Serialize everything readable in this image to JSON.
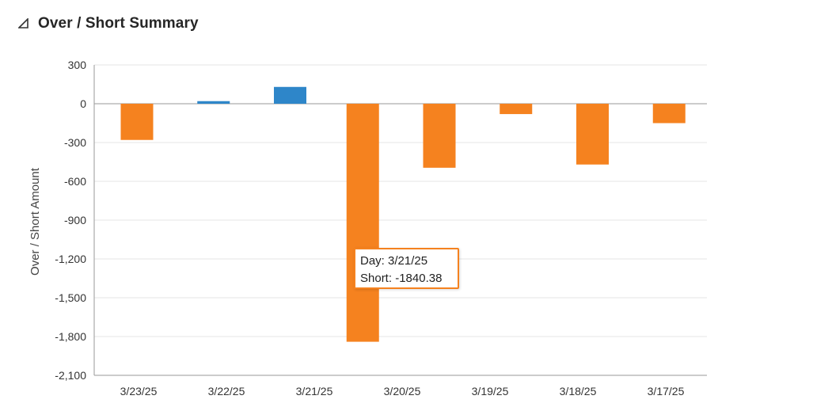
{
  "header": {
    "title": "Over / Short Summary",
    "toggle_icon": "collapse-triangle-icon"
  },
  "tooltip": {
    "day_label": "Day:",
    "day_value": "3/21/25",
    "short_label": "Short:",
    "short_value": "-1840.38"
  },
  "chart_data": {
    "type": "bar",
    "ylabel": "Over / Short Amount",
    "xlabel": "",
    "categories": [
      "3/23/25",
      "3/22/25",
      "3/21/25",
      "3/21/25",
      "3/20/25",
      "3/19/25",
      "3/18/25",
      "3/17/25"
    ],
    "x_tick_labels": [
      "3/23/25",
      "3/22/25",
      "3/21/25",
      "3/20/25",
      "3/19/25",
      "3/18/25",
      "3/17/25"
    ],
    "series": [
      {
        "values": [
          -280,
          20,
          null,
          null,
          -495,
          -80,
          -470,
          -150
        ],
        "kind": "per-day"
      },
      {
        "values": [
          null,
          null,
          130,
          -1840.38,
          null,
          null,
          null,
          null
        ],
        "kind": "per-day-split"
      }
    ],
    "bars": [
      {
        "day": "3/23/25",
        "value": -280,
        "color": "#f5821f"
      },
      {
        "day": "3/22/25",
        "value": 20,
        "color": "#2e86c9"
      },
      {
        "day": "3/21/25",
        "value": 130,
        "color": "#2e86c9",
        "slot": "left"
      },
      {
        "day": "3/21/25",
        "value": -1840.38,
        "color": "#f5821f",
        "slot": "right"
      },
      {
        "day": "3/20/25",
        "value": -495,
        "color": "#f5821f"
      },
      {
        "day": "3/19/25",
        "value": -80,
        "color": "#f5821f"
      },
      {
        "day": "3/18/25",
        "value": -470,
        "color": "#f5821f"
      },
      {
        "day": "3/17/25",
        "value": -150,
        "color": "#f5821f"
      }
    ],
    "y_ticks": [
      300,
      0,
      -300,
      -600,
      -900,
      -1200,
      -1500,
      -1800,
      -2100
    ],
    "y_tick_labels": [
      "300",
      "0",
      "-300",
      "-600",
      "-900",
      "-1,200",
      "-1,500",
      "-1,800",
      "-2,100"
    ],
    "ylim": [
      -2100,
      300
    ],
    "grid": true,
    "colors": {
      "over": "#2e86c9",
      "short": "#f5821f"
    }
  }
}
